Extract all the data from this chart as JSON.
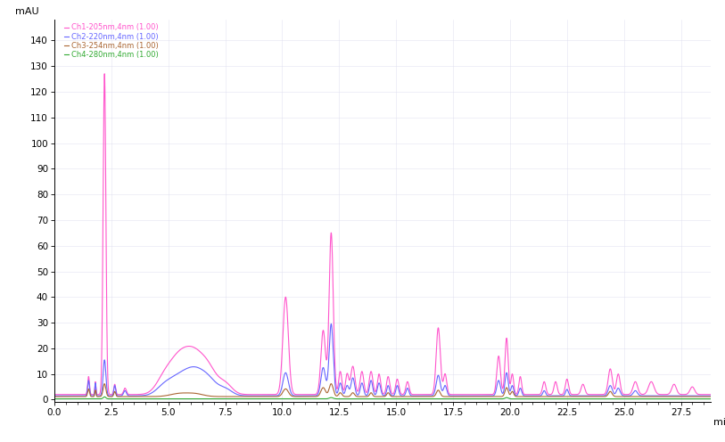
{
  "xlabel": "min",
  "ylabel": "mAU",
  "xlim": [
    0.0,
    28.8
  ],
  "ylim": [
    -1,
    148
  ],
  "yticks": [
    0,
    10,
    20,
    30,
    40,
    50,
    60,
    70,
    80,
    90,
    100,
    110,
    120,
    130,
    140
  ],
  "xticks": [
    0.0,
    2.5,
    5.0,
    7.5,
    10.0,
    12.5,
    15.0,
    17.5,
    20.0,
    22.5,
    25.0,
    27.5
  ],
  "channels": [
    {
      "label": "Ch1-205nm,4nm (1.00)",
      "color": "#FF55CC"
    },
    {
      "label": "Ch2-220nm,4nm (1.00)",
      "color": "#6666FF"
    },
    {
      "label": "Ch3-254nm,4nm (1.00)",
      "color": "#AA6633"
    },
    {
      "label": "Ch4-280nm,4nm (1.00)",
      "color": "#33AA33"
    }
  ],
  "background_color": "#FFFFFF",
  "grid_color": "#DDDDEE"
}
